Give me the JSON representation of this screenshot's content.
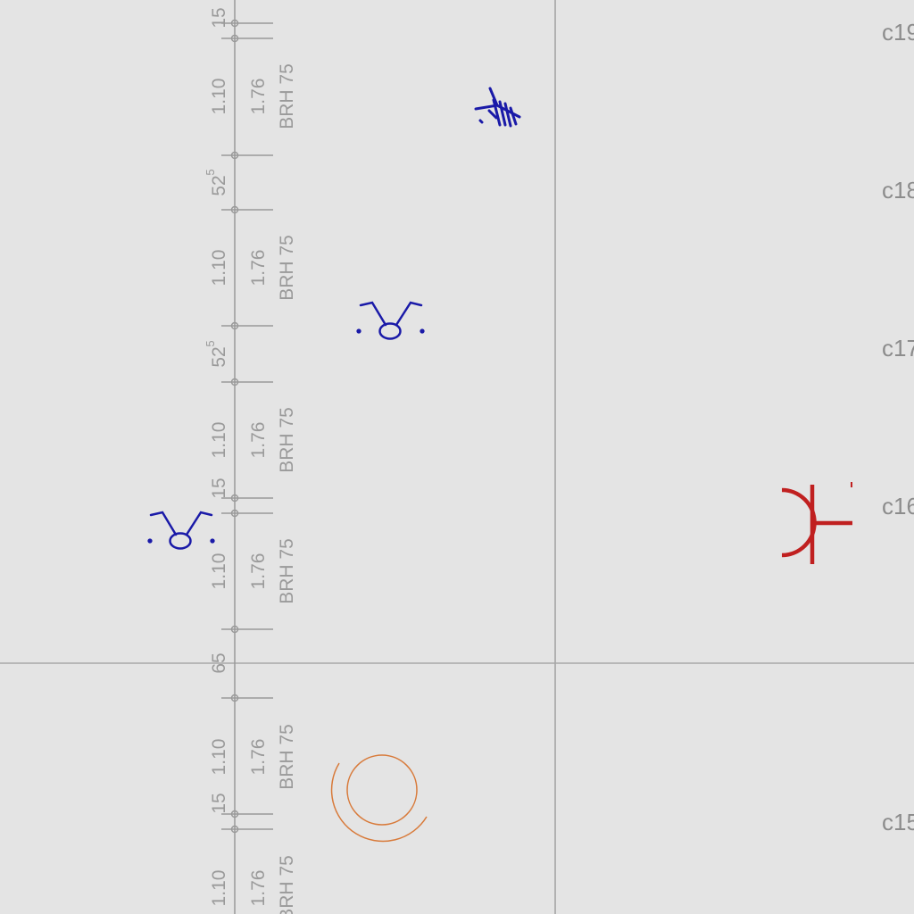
{
  "colors": {
    "background": "#e4e4e4",
    "grid_line": "#a0a0a0",
    "dimension": "#9a9a9a",
    "fixture_blue": "#1a1aa8",
    "fixture_red": "#c02020",
    "fixture_orange": "#d87a3a"
  },
  "dimensions": {
    "d1": "15",
    "d2": "1.10",
    "d3": "1.76",
    "d4": "BRH 75",
    "d5": "52",
    "d5s": "5",
    "d6": "1.10",
    "d7": "1.76",
    "d8": "BRH 75",
    "d9": "52",
    "d9s": "5",
    "d10": "1.10",
    "d11": "1.76",
    "d12": "BRH 75",
    "d13": "15",
    "d14": "1.10",
    "d15": "1.76",
    "d16": "BRH 75",
    "d17": "65",
    "d18": "1.10",
    "d19": "1.76",
    "d20": "BRH 75",
    "d21": "15",
    "d22": "1.10",
    "d23": "1.76",
    "d24": "BRH 75"
  },
  "grid_labels": {
    "c19": "c19",
    "c18": "c18",
    "c17": "c17",
    "c16": "c16",
    "c15": "c15"
  },
  "symbols": [
    {
      "name": "antenna-symbol-icon",
      "color": "fixture_blue"
    },
    {
      "name": "cow-symbol-icon",
      "color": "fixture_blue"
    },
    {
      "name": "cow-symbol-icon",
      "color": "fixture_blue"
    },
    {
      "name": "socket-symbol-icon",
      "color": "fixture_red"
    },
    {
      "name": "circle-symbol-icon",
      "color": "fixture_orange"
    }
  ]
}
